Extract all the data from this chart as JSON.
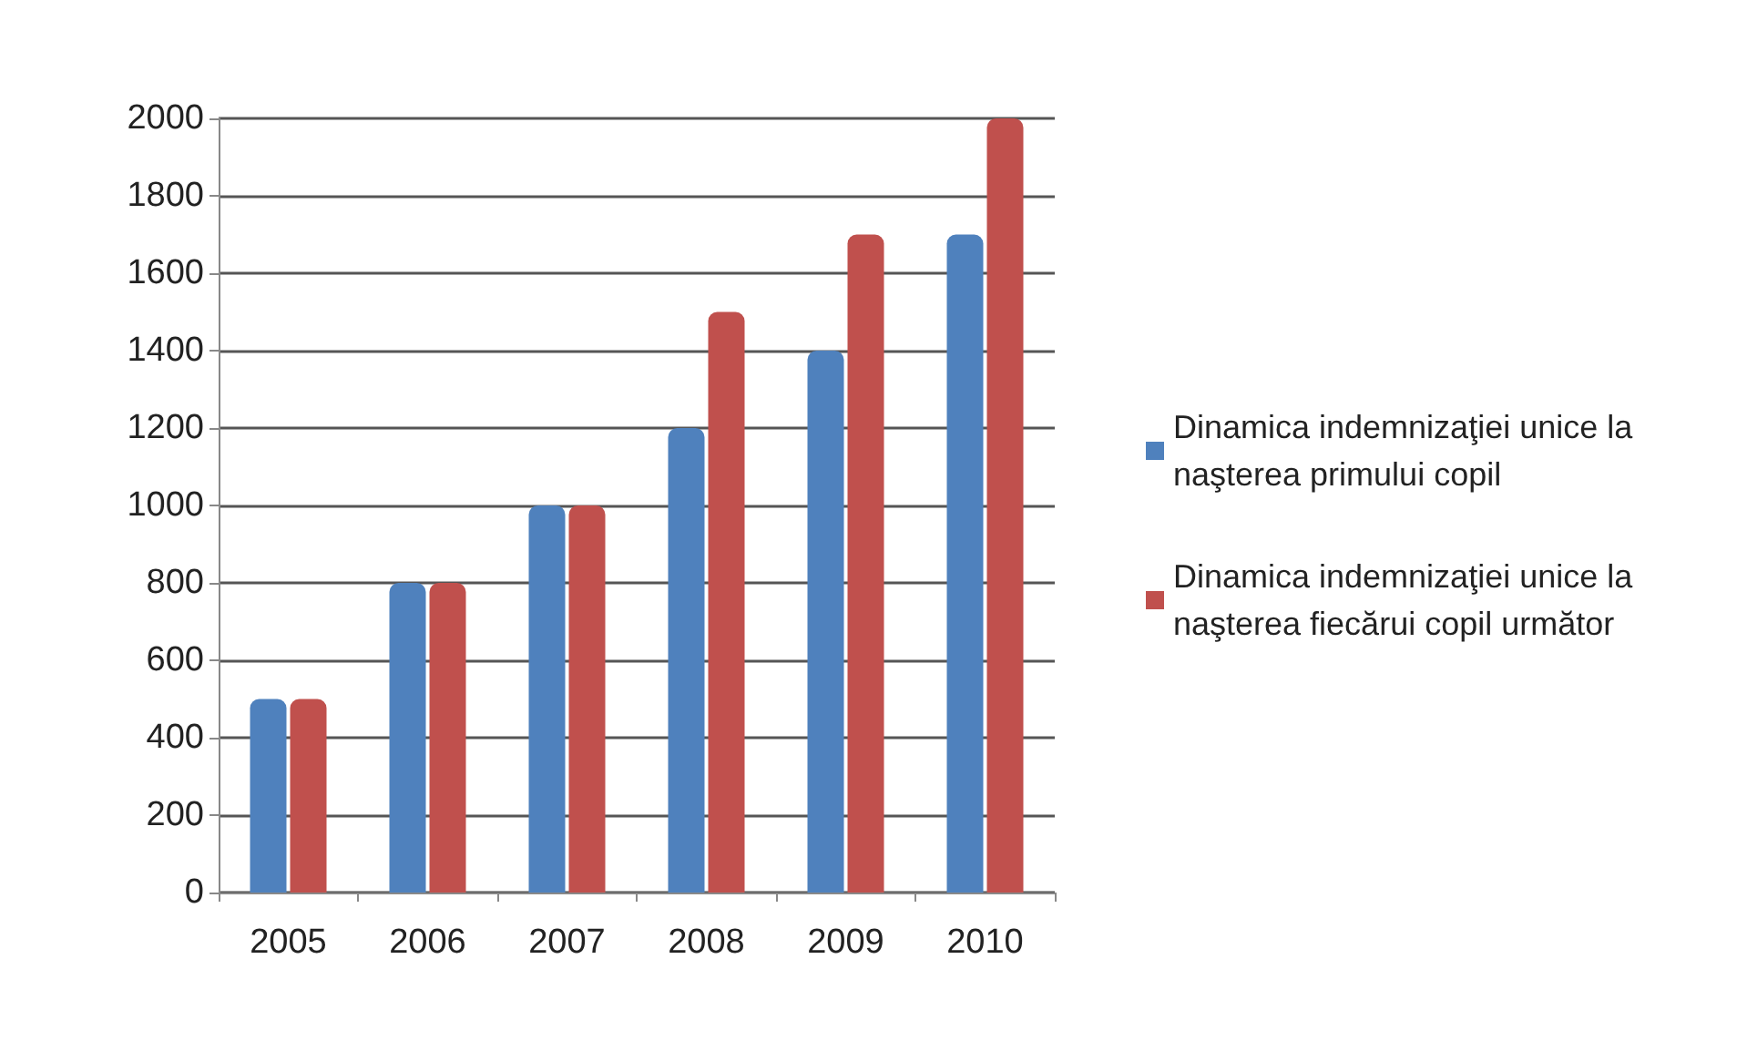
{
  "chart_data": {
    "type": "bar",
    "categories": [
      "2005",
      "2006",
      "2007",
      "2008",
      "2009",
      "2010"
    ],
    "series": [
      {
        "name": "Dinamica indemnizaţiei unice la naşterea primului copil",
        "color": "#4f81bd",
        "values": [
          500,
          800,
          1000,
          1200,
          1400,
          1700
        ]
      },
      {
        "name": "Dinamica indemnizaţiei unice la naşterea fiecărui copil următor",
        "color": "#c0504d",
        "values": [
          500,
          800,
          1000,
          1500,
          1700,
          2000
        ]
      }
    ],
    "ylim": [
      0,
      2000
    ],
    "yticks": [
      0,
      200,
      400,
      600,
      800,
      1000,
      1200,
      1400,
      1600,
      1800,
      2000
    ],
    "grid": "y",
    "legend": "right"
  }
}
